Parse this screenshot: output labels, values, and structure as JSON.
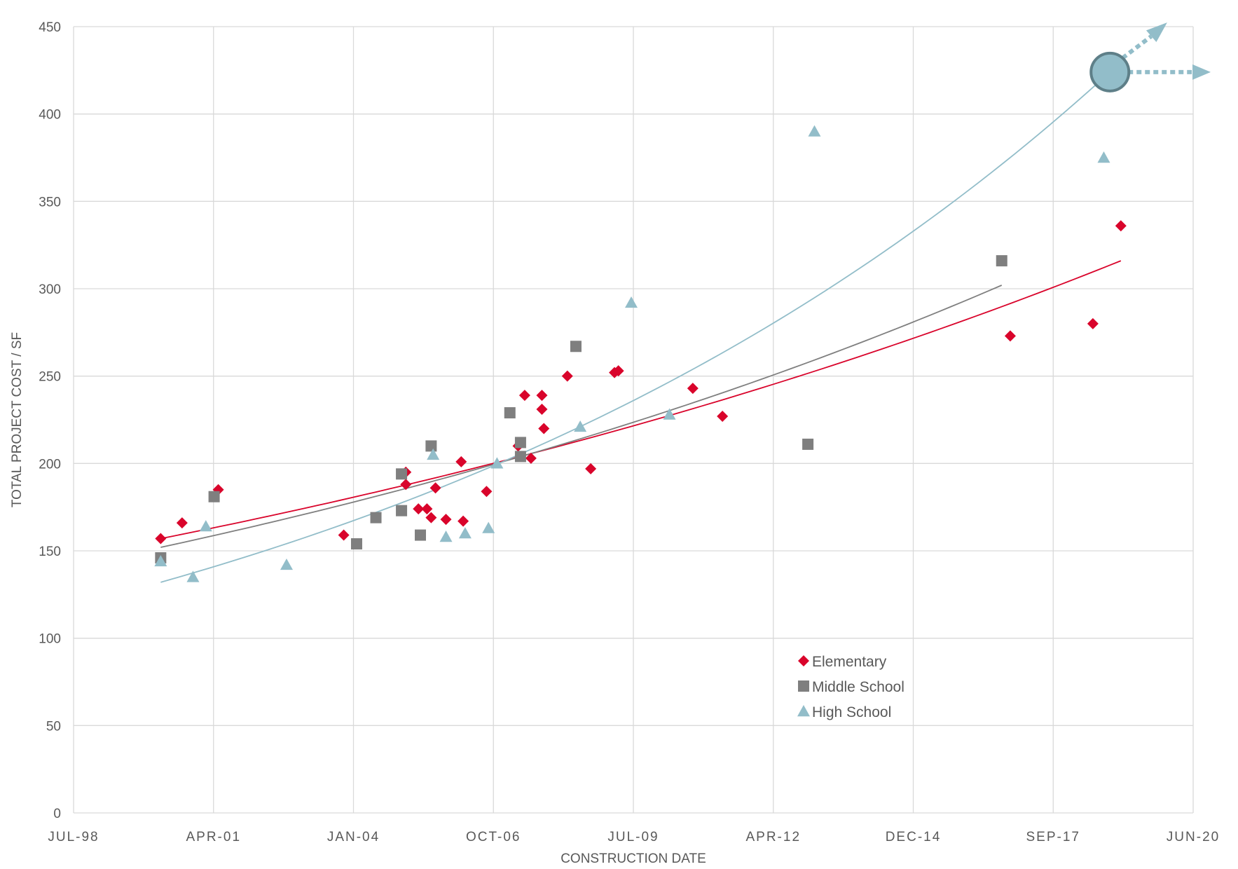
{
  "chart_data": {
    "type": "scatter",
    "title": "",
    "xlabel": "CONSTRUCTION DATE",
    "ylabel": "TOTAL  PROJECT COST / SF",
    "x_ticks": [
      "JUL-98",
      "APR-01",
      "JAN-04",
      "OCT-06",
      "JUL-09",
      "APR-12",
      "DEC-14",
      "SEP-17",
      "JUN-20"
    ],
    "xlim": [
      "1998-07-01",
      "2020-06-01"
    ],
    "ylim": [
      0,
      450
    ],
    "y_ticks": [
      0,
      50,
      100,
      150,
      200,
      250,
      300,
      350,
      400,
      450
    ],
    "grid": true,
    "legend_position": "bottom-center",
    "series": [
      {
        "name": "Elementary",
        "marker": "diamond",
        "color": "#d9042b",
        "points": [
          [
            "2000-03-15",
            157
          ],
          [
            "2000-08-15",
            166
          ],
          [
            "2001-05-01",
            185
          ],
          [
            "2003-10-15",
            159
          ],
          [
            "2005-10-15",
            168
          ],
          [
            "2005-01-01",
            195
          ],
          [
            "2005-01-01",
            188
          ],
          [
            "2005-04-01",
            174
          ],
          [
            "2005-06-01",
            174
          ],
          [
            "2005-07-01",
            169
          ],
          [
            "2005-08-01",
            186
          ],
          [
            "2006-02-01",
            201
          ],
          [
            "2006-02-15",
            167
          ],
          [
            "2006-08-01",
            184
          ],
          [
            "2007-03-15",
            210
          ],
          [
            "2007-05-01",
            239
          ],
          [
            "2007-06-15",
            203
          ],
          [
            "2007-09-01",
            239
          ],
          [
            "2007-09-01",
            231
          ],
          [
            "2007-09-15",
            220
          ],
          [
            "2008-03-01",
            250
          ],
          [
            "2008-08-15",
            197
          ],
          [
            "2009-02-01",
            252
          ],
          [
            "2009-03-01",
            253
          ],
          [
            "2010-08-15",
            243
          ],
          [
            "2011-03-15",
            227
          ],
          [
            "2016-11-01",
            273
          ],
          [
            "2018-06-15",
            280
          ],
          [
            "2019-01-01",
            336
          ]
        ]
      },
      {
        "name": "Middle School",
        "marker": "square",
        "color": "#7f7f7f",
        "points": [
          [
            "2000-03-15",
            146
          ],
          [
            "2001-04-01",
            181
          ],
          [
            "2004-01-15",
            154
          ],
          [
            "2004-06-01",
            169
          ],
          [
            "2004-12-01",
            194
          ],
          [
            "2004-12-01",
            173
          ],
          [
            "2005-04-15",
            159
          ],
          [
            "2005-07-01",
            210
          ],
          [
            "2007-01-15",
            229
          ],
          [
            "2007-04-01",
            212
          ],
          [
            "2007-04-01",
            204
          ],
          [
            "2008-05-01",
            267
          ],
          [
            "2012-11-15",
            211
          ],
          [
            "2016-09-01",
            316
          ]
        ]
      },
      {
        "name": "High School",
        "marker": "triangle",
        "color": "#92bdc9",
        "points": [
          [
            "2000-03-15",
            144
          ],
          [
            "2000-11-01",
            135
          ],
          [
            "2001-02-01",
            164
          ],
          [
            "2002-09-01",
            142
          ],
          [
            "2005-10-15",
            158
          ],
          [
            "2005-07-15",
            205
          ],
          [
            "2006-03-01",
            160
          ],
          [
            "2006-08-15",
            163
          ],
          [
            "2006-10-15",
            200
          ],
          [
            "2008-06-01",
            221
          ],
          [
            "2009-06-01",
            292
          ],
          [
            "2010-03-01",
            228
          ],
          [
            "2013-01-01",
            390
          ],
          [
            "2018-09-01",
            375
          ]
        ]
      }
    ],
    "trendlines": [
      {
        "series": "Elementary",
        "color": "#d9042b",
        "from": "2000-03-15",
        "to": "2019-01-01",
        "start_value": 157,
        "end_value": 316
      },
      {
        "series": "Middle School",
        "color": "#7f7f7f",
        "from": "2000-03-15",
        "to": "2016-09-01",
        "start_value": 152,
        "end_value": 302
      },
      {
        "series": "High School",
        "color": "#92bdc9",
        "from": "2000-03-15",
        "to": "2018-10-15",
        "start_value": 132,
        "end_value": 424
      }
    ],
    "projection": {
      "date": "2018-10-15",
      "value": 424,
      "color": "#92bdc9"
    }
  }
}
